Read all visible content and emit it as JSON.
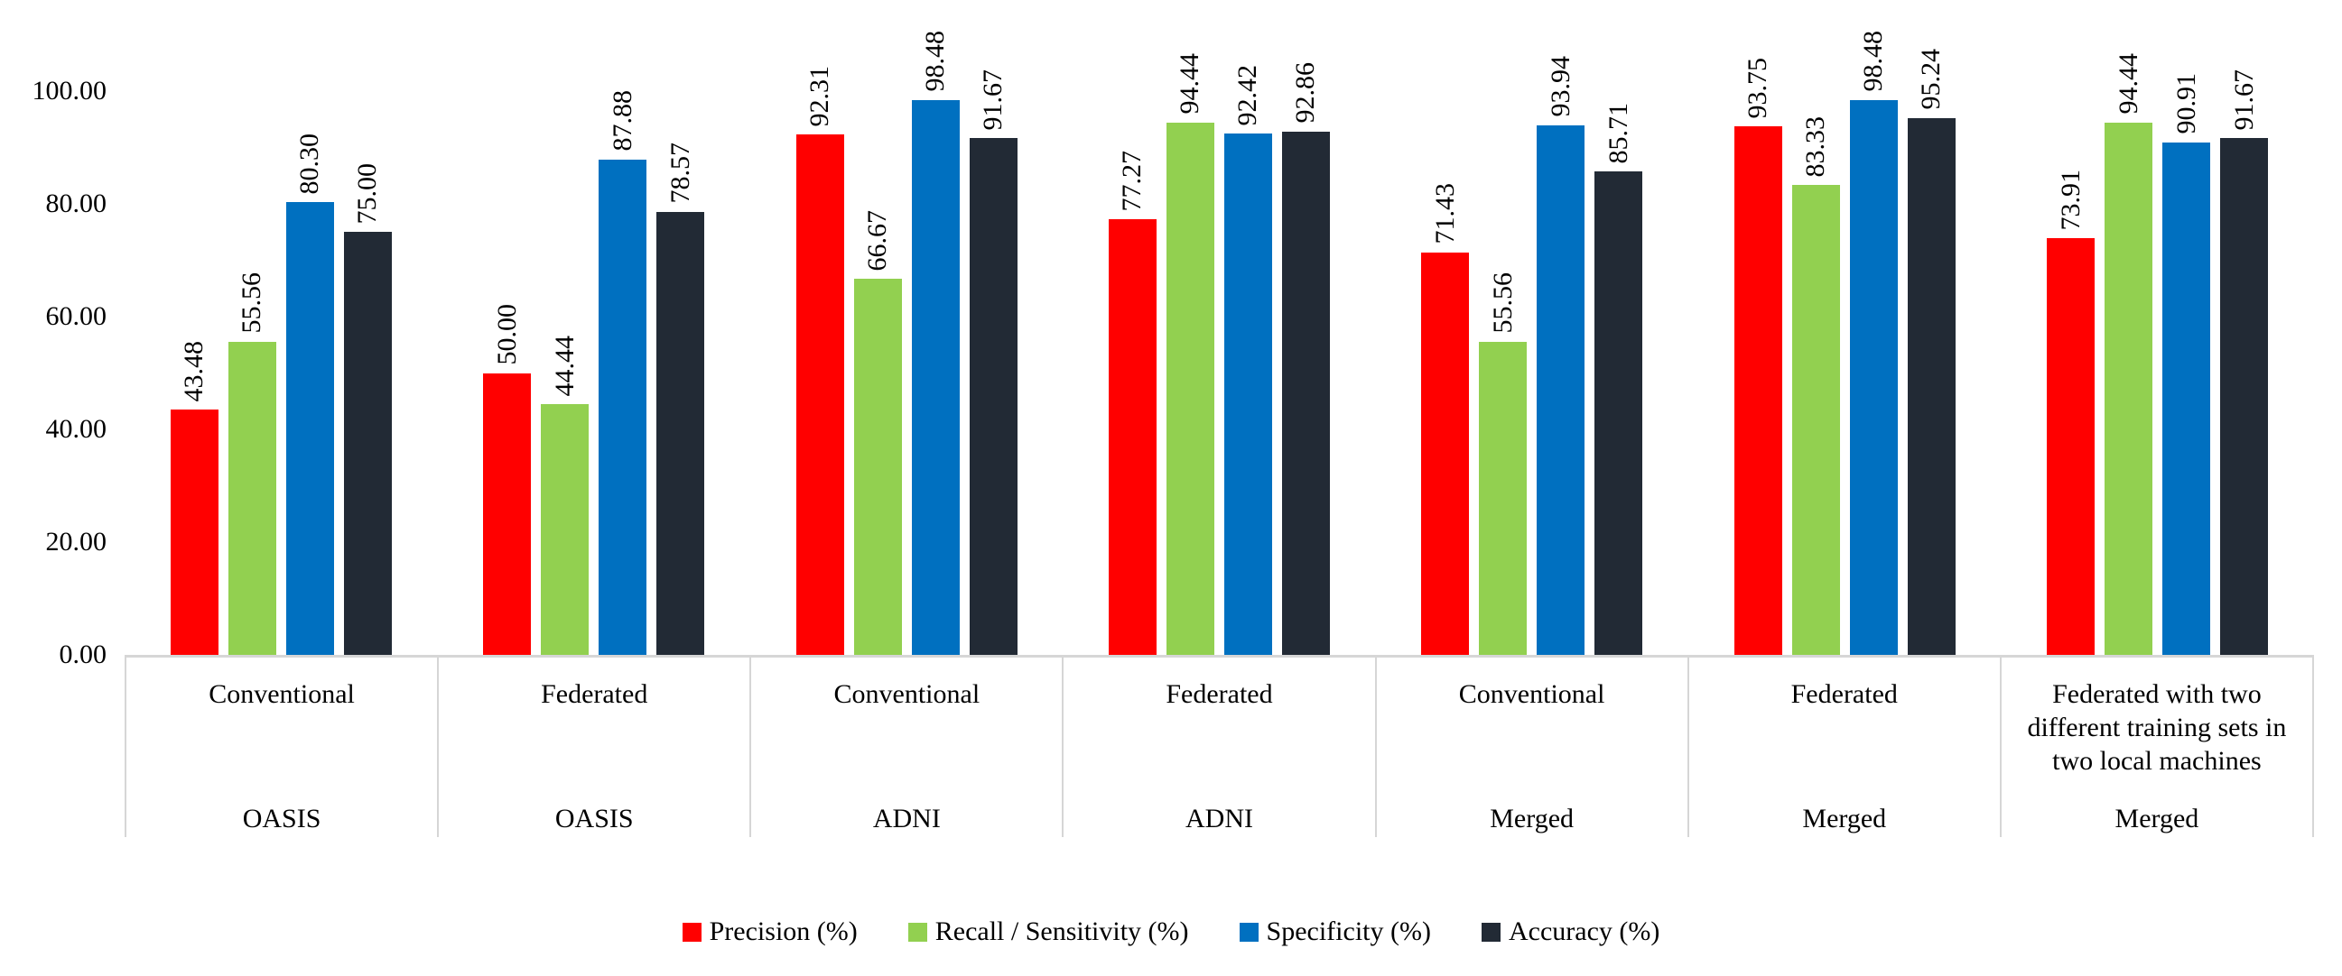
{
  "chart_data": {
    "type": "bar",
    "title": "",
    "xlabel": "",
    "ylabel": "",
    "ylim": [
      0,
      100
    ],
    "yticks": [
      100,
      80,
      60,
      40,
      20,
      0
    ],
    "ytick_labels": [
      "100.00",
      "80.00",
      "60.00",
      "40.00",
      "20.00",
      "0.00"
    ],
    "grid": false,
    "legend_position": "bottom",
    "bar_label_decimals": 2,
    "axis_color": "#D6D6D6",
    "categories": [
      {
        "method": "Conventional",
        "dataset": "OASIS"
      },
      {
        "method": "Federated",
        "dataset": "OASIS"
      },
      {
        "method": "Conventional",
        "dataset": "ADNI"
      },
      {
        "method": "Federated",
        "dataset": "ADNI"
      },
      {
        "method": "Conventional",
        "dataset": "Merged"
      },
      {
        "method": "Federated",
        "dataset": "Merged"
      },
      {
        "method": "Federated with two different training sets in two local machines",
        "dataset": "Merged"
      }
    ],
    "series": [
      {
        "name": "Precision (%)",
        "color": "#FF0000",
        "values": [
          43.48,
          50.0,
          92.31,
          77.27,
          71.43,
          93.75,
          73.91
        ]
      },
      {
        "name": "Recall / Sensitivity (%)",
        "color": "#92D050",
        "values": [
          55.56,
          44.44,
          66.67,
          94.44,
          55.56,
          83.33,
          94.44
        ]
      },
      {
        "name": "Specificity (%)",
        "color": "#0070C0",
        "values": [
          80.3,
          87.88,
          98.48,
          92.42,
          93.94,
          98.48,
          90.91
        ]
      },
      {
        "name": "Accuracy (%)",
        "color": "#222A35",
        "values": [
          75.0,
          78.57,
          91.67,
          92.86,
          85.71,
          95.24,
          91.67
        ]
      }
    ]
  }
}
